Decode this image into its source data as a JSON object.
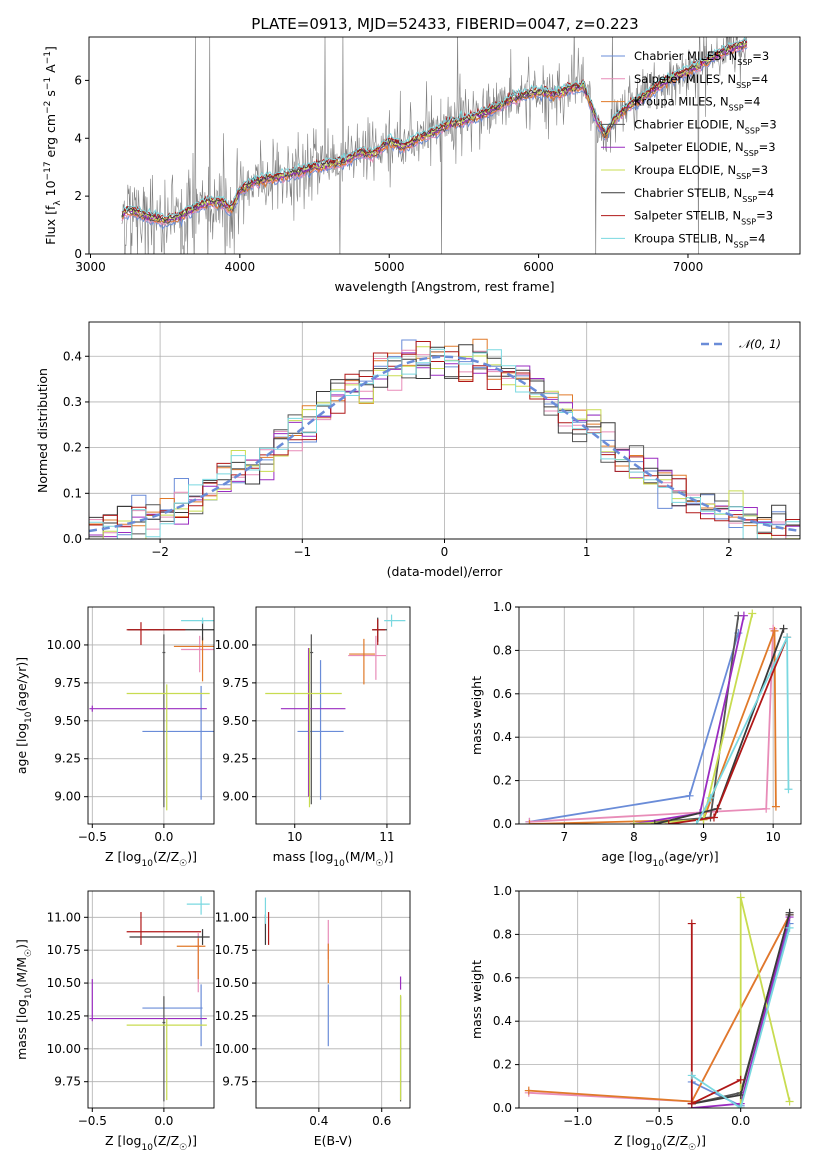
{
  "figure": {
    "title": "PLATE=0913, MJD=52433, FIBERID=0047, z=0.223"
  },
  "colors": {
    "cmiles": "#6a8cd8",
    "smiles": "#e88cb8",
    "kmiles": "#e07a2a",
    "celodie": "#555555",
    "selodie": "#9a2cc0",
    "kelodie": "#c8dc50",
    "cstelib": "#3a3a3a",
    "sstelib": "#b01818",
    "kstelib": "#7ad8e0",
    "obs": "#808080",
    "norm": "#6a8cd8"
  },
  "chart_data": [
    {
      "id": "spectrum",
      "type": "line",
      "xlabel": "wavelength [Angstrom, rest frame]",
      "ylabel": "Flux [f_λ 10^-17 erg cm^-2 s^-1 A^-1]",
      "xlim": [
        2990,
        7750
      ],
      "ylim": [
        0,
        7.5
      ],
      "xticks": [
        3000,
        4000,
        5000,
        6000,
        7000
      ],
      "yticks": [
        0,
        2,
        4,
        6
      ],
      "observed_series": {
        "name": "observed spectrum",
        "x_range": [
          3210,
          7400
        ]
      },
      "model_template_x": [
        3210,
        3230,
        3250,
        3300,
        3400,
        3500,
        3600,
        3700,
        3800,
        3900,
        3930,
        3960,
        4000,
        4100,
        4300,
        4500,
        4700,
        4800,
        4900,
        5000,
        5100,
        5200,
        5300,
        5400,
        5500,
        5600,
        5700,
        5800,
        5900,
        6000,
        6100,
        6200,
        6300,
        6400,
        6450,
        6500,
        6600,
        6700,
        6800,
        6900,
        7000,
        7100,
        7200,
        7300,
        7400
      ],
      "model_template_y": [
        1.3,
        1.45,
        1.5,
        1.45,
        1.25,
        1.15,
        1.3,
        1.6,
        1.8,
        1.75,
        1.55,
        1.7,
        2.2,
        2.5,
        2.7,
        3.0,
        3.2,
        3.5,
        3.45,
        3.9,
        3.7,
        4.0,
        4.2,
        4.5,
        4.6,
        4.8,
        5.0,
        5.3,
        5.5,
        5.6,
        5.5,
        5.7,
        5.8,
        4.5,
        4.1,
        4.6,
        5.1,
        5.4,
        5.8,
        6.1,
        6.3,
        6.6,
        6.9,
        7.1,
        7.3
      ],
      "series": [
        {
          "name": "Chabrier MILES",
          "label_prefix": "Chabrier MILES, N",
          "nssp": 3,
          "color_key": "cmiles"
        },
        {
          "name": "Salpeter MILES",
          "label_prefix": "Salpeter MILES, N",
          "nssp": 4,
          "color_key": "smiles"
        },
        {
          "name": "Kroupa MILES",
          "label_prefix": "Kroupa MILES, N",
          "nssp": 4,
          "color_key": "kmiles"
        },
        {
          "name": "Chabrier ELODIE",
          "label_prefix": "Chabrier ELODIE, N",
          "nssp": 3,
          "color_key": "celodie"
        },
        {
          "name": "Salpeter ELODIE",
          "label_prefix": "Salpeter ELODIE, N",
          "nssp": 3,
          "color_key": "selodie"
        },
        {
          "name": "Kroupa ELODIE",
          "label_prefix": "Kroupa ELODIE, N",
          "nssp": 3,
          "color_key": "kelodie"
        },
        {
          "name": "Chabrier STELIB",
          "label_prefix": "Chabrier STELIB, N",
          "nssp": 4,
          "color_key": "cstelib"
        },
        {
          "name": "Salpeter STELIB",
          "label_prefix": "Salpeter STELIB, N",
          "nssp": 3,
          "color_key": "sstelib"
        },
        {
          "name": "Kroupa STELIB",
          "label_prefix": "Kroupa STELIB, N",
          "nssp": 4,
          "color_key": "kstelib"
        }
      ],
      "legend_sub": "SSP",
      "legend_location": "upper right"
    },
    {
      "id": "residuals",
      "type": "line",
      "xlabel": "(data-model)/error",
      "ylabel": "Normed distribution",
      "xlim": [
        -2.5,
        2.5
      ],
      "ylim": [
        0,
        0.475
      ],
      "xticks": [
        -2,
        -1,
        0,
        1,
        2
      ],
      "yticks": [
        0.0,
        0.1,
        0.2,
        0.3,
        0.4
      ],
      "grid": true,
      "bin_width": 0.1,
      "reference_curve": {
        "name": "N(0,1)",
        "mean": 0,
        "sigma": 1,
        "style": "dashed"
      },
      "legend_location": "upper right"
    },
    {
      "id": "age_vs_Z",
      "type": "scatter",
      "xlabel": "Z [log10(Z/Z☉)]",
      "ylabel": "age  [log10(age/yr)]",
      "xlim": [
        -0.53,
        0.35
      ],
      "ylim": [
        8.82,
        10.25
      ],
      "xticks": [
        -0.5,
        0.0,
        0.5
      ],
      "yticks": [
        9.0,
        9.25,
        9.5,
        9.75,
        10.0
      ],
      "grid": true,
      "points": [
        {
          "key": "cmiles",
          "x": 0.26,
          "y": 9.43,
          "x_err": [
            0.41,
            0.3
          ],
          "y_err": [
            0.45,
            0.3
          ]
        },
        {
          "key": "smiles",
          "x": 0.25,
          "y": 9.97,
          "x_err": [
            0.13,
            0.3
          ],
          "y_err": [
            0.15,
            0.09
          ]
        },
        {
          "key": "kmiles",
          "x": 0.27,
          "y": 9.99,
          "x_err": [
            0.2,
            0.31
          ],
          "y_err": [
            0.23,
            0.06
          ]
        },
        {
          "key": "celodie",
          "x": 0.0,
          "y": 9.95,
          "x_err": [
            0.01,
            0.01
          ],
          "y_err": [
            1.02,
            0.12
          ]
        },
        {
          "key": "selodie",
          "x": -0.5,
          "y": 9.58,
          "x_err": [
            0.02,
            0.8
          ],
          "y_err": [
            0.02,
            0.02
          ]
        },
        {
          "key": "kelodie",
          "x": 0.02,
          "y": 9.68,
          "x_err": [
            0.28,
            0.3
          ],
          "y_err": [
            0.77,
            0.06
          ]
        },
        {
          "key": "cstelib",
          "x": 0.27,
          "y": 10.1,
          "x_err": [
            0.52,
            0.31
          ],
          "y_err": [
            0.07,
            0.06
          ]
        },
        {
          "key": "sstelib",
          "x": -0.16,
          "y": 10.1,
          "x_err": [
            0.1,
            0.31
          ],
          "y_err": [
            0.1,
            0.05
          ]
        },
        {
          "key": "kstelib",
          "x": 0.27,
          "y": 10.16,
          "x_err": [
            0.15,
            0.32
          ],
          "y_err": [
            0.02,
            0.02
          ]
        }
      ]
    },
    {
      "id": "age_vs_mass",
      "type": "scatter",
      "xlabel": "mass [log10(M/M☉)]",
      "xlim": [
        9.58,
        11.25
      ],
      "ylim": [
        8.82,
        10.25
      ],
      "xticks": [
        10,
        11
      ],
      "yticks": [
        9.0,
        9.25,
        9.5,
        9.75,
        10.0
      ],
      "grid": true,
      "points": [
        {
          "key": "cmiles",
          "x": 10.28,
          "y": 9.43,
          "x_err": [
            0.25,
            0.25
          ],
          "y_err": [
            0.45,
            0.47
          ]
        },
        {
          "key": "smiles",
          "x": 10.88,
          "y": 9.93,
          "x_err": [
            0.3,
            0.11
          ],
          "y_err": [
            0.16,
            0.13
          ]
        },
        {
          "key": "kmiles",
          "x": 10.75,
          "y": 9.94,
          "x_err": [
            0.16,
            0.12
          ],
          "y_err": [
            0.2,
            0.1
          ]
        },
        {
          "key": "celodie",
          "x": 10.18,
          "y": 9.95,
          "x_err": [
            0.02,
            0.02
          ],
          "y_err": [
            1.0,
            0.12
          ]
        },
        {
          "key": "selodie",
          "x": 10.15,
          "y": 9.58,
          "x_err": [
            0.3,
            0.4
          ],
          "y_err": [
            0.58,
            0.4
          ]
        },
        {
          "key": "kelodie",
          "x": 10.16,
          "y": 9.68,
          "x_err": [
            0.48,
            0.35
          ],
          "y_err": [
            0.75,
            0.3
          ]
        },
        {
          "key": "cstelib",
          "x": 10.9,
          "y": 10.1,
          "x_err": [
            0.06,
            0.1
          ],
          "y_err": [
            0.08,
            0.08
          ]
        },
        {
          "key": "sstelib",
          "x": 10.9,
          "y": 10.1,
          "x_err": [
            0.06,
            0.08
          ],
          "y_err": [
            0.1,
            0.07
          ]
        },
        {
          "key": "kstelib",
          "x": 11.05,
          "y": 10.16,
          "x_err": [
            0.08,
            0.15
          ],
          "y_err": [
            0.04,
            0.04
          ]
        }
      ]
    },
    {
      "id": "massweight_vs_age",
      "type": "line",
      "xlabel": "age  [log10(age/yr)]",
      "ylabel": "mass weight",
      "xlim": [
        6.35,
        10.4
      ],
      "ylim": [
        0,
        1.0
      ],
      "xticks": [
        7,
        8,
        9,
        10
      ],
      "yticks": [
        0.0,
        0.2,
        0.4,
        0.6,
        0.8,
        1.0
      ],
      "grid": true,
      "series": [
        {
          "key": "cmiles",
          "x": [
            6.5,
            8.8,
            9.5
          ],
          "y": [
            0.01,
            0.13,
            0.88
          ]
        },
        {
          "key": "smiles",
          "x": [
            6.5,
            9.9,
            10.0
          ],
          "y": [
            0.01,
            0.07,
            0.9
          ]
        },
        {
          "key": "kmiles",
          "x": [
            6.5,
            9.0,
            10.02,
            10.04
          ],
          "y": [
            0.0,
            0.02,
            0.89,
            0.08
          ]
        },
        {
          "key": "celodie",
          "x": [
            8.0,
            9.1,
            9.5
          ],
          "y": [
            0.0,
            0.03,
            0.96
          ]
        },
        {
          "key": "selodie",
          "x": [
            8.0,
            8.95,
            9.58
          ],
          "y": [
            0.0,
            0.05,
            0.96
          ]
        },
        {
          "key": "kelodie",
          "x": [
            8.0,
            9.0,
            9.7
          ],
          "y": [
            0.0,
            0.02,
            0.97
          ]
        },
        {
          "key": "cstelib",
          "x": [
            8.3,
            9.2,
            10.15
          ],
          "y": [
            0.0,
            0.07,
            0.9
          ]
        },
        {
          "key": "sstelib",
          "x": [
            8.5,
            9.15,
            10.2
          ],
          "y": [
            0.0,
            0.03,
            0.86
          ]
        },
        {
          "key": "kstelib",
          "x": [
            8.9,
            9.1,
            10.2,
            10.22
          ],
          "y": [
            0.0,
            0.12,
            0.86,
            0.16
          ]
        }
      ]
    },
    {
      "id": "mass_vs_Z",
      "type": "scatter",
      "xlabel": "Z [log10(Z/Z☉)]",
      "ylabel": "mass [log10(M/M☉)]",
      "xlim": [
        -0.53,
        0.35
      ],
      "ylim": [
        9.55,
        11.2
      ],
      "xticks": [
        -0.5,
        0.0,
        0.5
      ],
      "yticks": [
        9.75,
        10.0,
        10.25,
        10.5,
        10.75,
        11.0
      ],
      "grid": true,
      "points": [
        {
          "key": "cmiles",
          "x": 0.26,
          "y": 10.31,
          "x_err": [
            0.41,
            0.01
          ],
          "y_err": [
            0.29,
            0.18
          ]
        },
        {
          "key": "smiles",
          "x": 0.24,
          "y": 10.78,
          "x_err": [
            0.02,
            0.02
          ],
          "y_err": [
            0.35,
            0.1
          ]
        },
        {
          "key": "kmiles",
          "x": 0.24,
          "y": 10.78,
          "x_err": [
            0.15,
            0.05
          ],
          "y_err": [
            0.25,
            0.06
          ]
        },
        {
          "key": "celodie",
          "x": 0.0,
          "y": 10.2,
          "x_err": [
            0.01,
            0.01
          ],
          "y_err": [
            0.6,
            0.2
          ]
        },
        {
          "key": "selodie",
          "x": -0.5,
          "y": 10.23,
          "x_err": [
            0.02,
            0.8
          ],
          "y_err": [
            0.02,
            0.3
          ]
        },
        {
          "key": "kelodie",
          "x": 0.02,
          "y": 10.18,
          "x_err": [
            0.28,
            0.28
          ],
          "y_err": [
            0.57,
            0.05
          ]
        },
        {
          "key": "cstelib",
          "x": 0.27,
          "y": 10.85,
          "x_err": [
            0.51,
            0.05
          ],
          "y_err": [
            0.06,
            0.06
          ]
        },
        {
          "key": "sstelib",
          "x": -0.16,
          "y": 10.89,
          "x_err": [
            0.1,
            0.42
          ],
          "y_err": [
            0.1,
            0.15
          ]
        },
        {
          "key": "kstelib",
          "x": 0.26,
          "y": 11.1,
          "x_err": [
            0.1,
            0.06
          ],
          "y_err": [
            0.08,
            0.06
          ]
        }
      ]
    },
    {
      "id": "mass_vs_EBV",
      "type": "scatter",
      "xlabel": "E(B-V)",
      "xlim": [
        0.2,
        0.69
      ],
      "ylim": [
        9.55,
        11.2
      ],
      "xticks": [
        0.4,
        0.6
      ],
      "yticks": [
        9.75,
        10.0,
        10.25,
        10.5,
        10.75,
        11.0
      ],
      "grid": true,
      "points": [
        {
          "key": "cmiles",
          "x": 0.43,
          "y": 10.31,
          "x_err": [
            0.0,
            0.0
          ],
          "y_err": [
            0.29,
            0.18
          ]
        },
        {
          "key": "smiles",
          "x": 0.43,
          "y": 10.78,
          "x_err": [
            0.0,
            0.0
          ],
          "y_err": [
            0.1,
            0.2
          ]
        },
        {
          "key": "kmiles",
          "x": 0.43,
          "y": 10.55,
          "x_err": [
            0.0,
            0.0
          ],
          "y_err": [
            0.05,
            0.25
          ]
        },
        {
          "key": "celodie",
          "x": 0.66,
          "y": 10.2,
          "x_err": [
            0.0,
            0.0
          ],
          "y_err": [
            0.6,
            0.2
          ]
        },
        {
          "key": "selodie",
          "x": 0.66,
          "y": 10.5,
          "x_err": [
            0.0,
            0.0
          ],
          "y_err": [
            0.05,
            0.05
          ]
        },
        {
          "key": "kelodie",
          "x": 0.66,
          "y": 10.18,
          "x_err": [
            0.0,
            0.0
          ],
          "y_err": [
            0.57,
            0.23
          ]
        },
        {
          "key": "cstelib",
          "x": 0.23,
          "y": 10.85,
          "x_err": [
            0.0,
            0.0
          ],
          "y_err": [
            0.06,
            0.17
          ]
        },
        {
          "key": "sstelib",
          "x": 0.24,
          "y": 10.89,
          "x_err": [
            0.0,
            0.0
          ],
          "y_err": [
            0.1,
            0.15
          ]
        },
        {
          "key": "kstelib",
          "x": 0.23,
          "y": 11.05,
          "x_err": [
            0.0,
            0.0
          ],
          "y_err": [
            0.1,
            0.1
          ]
        }
      ]
    },
    {
      "id": "massweight_vs_Z",
      "type": "line",
      "xlabel": "Z [log10(Z/Z☉)]",
      "ylabel": "mass weight",
      "xlim": [
        -1.36,
        0.37
      ],
      "ylim": [
        0,
        1.0
      ],
      "xticks": [
        -1.0,
        -0.5,
        0.0
      ],
      "yticks": [
        0.0,
        0.2,
        0.4,
        0.6,
        0.8,
        1.0
      ],
      "grid": true,
      "series": [
        {
          "key": "cmiles",
          "x": [
            -0.3,
            0.0,
            0.3
          ],
          "y": [
            0.12,
            0.01,
            0.85
          ]
        },
        {
          "key": "smiles",
          "x": [
            -1.3,
            -0.3,
            0.3
          ],
          "y": [
            0.07,
            0.03,
            0.89
          ]
        },
        {
          "key": "kmiles",
          "x": [
            -1.3,
            -0.3,
            0.3
          ],
          "y": [
            0.08,
            0.03,
            0.89
          ]
        },
        {
          "key": "celodie",
          "x": [
            -0.3,
            0.0,
            0.3
          ],
          "y": [
            0.02,
            0.07,
            0.89
          ]
        },
        {
          "key": "selodie",
          "x": [
            -0.3,
            0.0,
            0.3
          ],
          "y": [
            0.0,
            0.02,
            0.88
          ]
        },
        {
          "key": "kelodie",
          "x": [
            0.0,
            0.0,
            0.3
          ],
          "y": [
            0.0,
            0.97,
            0.03
          ]
        },
        {
          "key": "cstelib",
          "x": [
            -0.3,
            0.0,
            0.3
          ],
          "y": [
            0.02,
            0.06,
            0.9
          ]
        },
        {
          "key": "sstelib",
          "x": [
            -0.3,
            -0.3,
            0.0
          ],
          "y": [
            0.85,
            0.02,
            0.13
          ]
        },
        {
          "key": "kstelib",
          "x": [
            -0.3,
            0.0,
            0.3
          ],
          "y": [
            0.15,
            0.0,
            0.83
          ]
        }
      ]
    }
  ]
}
